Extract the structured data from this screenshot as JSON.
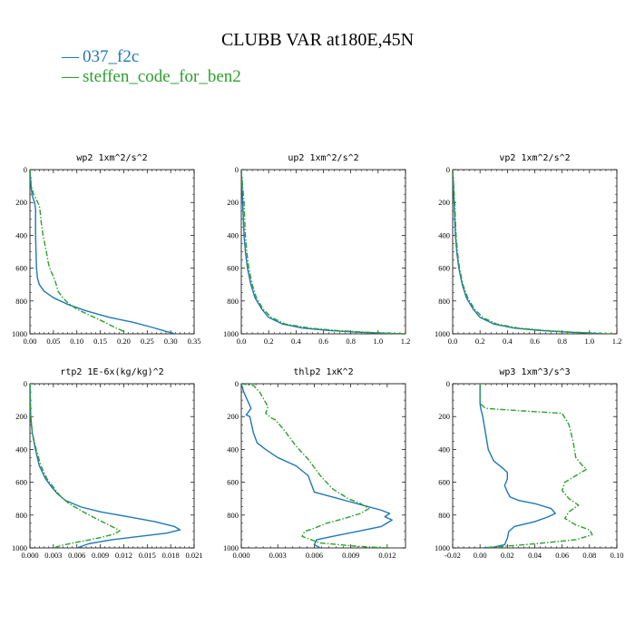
{
  "figure": {
    "title": "CLUBB VAR at180E,45N"
  },
  "legend": [
    {
      "marker": "—",
      "name": "037_f2c",
      "color": "#1f77b4",
      "dash": "solid"
    },
    {
      "marker": "—",
      "name": "steffen_code_for_ben2",
      "color": "#2ca02c",
      "dash": "dashdot"
    }
  ],
  "chart_data": [
    {
      "type": "line",
      "title": "wp2   1xm^2/s^2",
      "xlim": [
        0,
        0.35
      ],
      "xticks": [
        "0.00",
        "0.05",
        "0.10",
        "0.15",
        "0.20",
        "0.25",
        "0.30",
        "0.35"
      ],
      "ylim": [
        0,
        1000
      ],
      "yticks": [
        "0",
        "200",
        "400",
        "600",
        "800",
        "1000"
      ],
      "y_reversed": true,
      "series": [
        {
          "name": "037_f2c",
          "color": "#1f77b4",
          "dash": "solid",
          "x": [
            0.0,
            0.002,
            0.005,
            0.01,
            0.012,
            0.012,
            0.012,
            0.013,
            0.014,
            0.016,
            0.02,
            0.03,
            0.05,
            0.08,
            0.12,
            0.17,
            0.22,
            0.26,
            0.29,
            0.31
          ],
          "y": [
            0,
            100,
            160,
            200,
            240,
            300,
            400,
            500,
            600,
            660,
            700,
            740,
            780,
            820,
            860,
            900,
            930,
            960,
            985,
            1000
          ]
        },
        {
          "name": "steffen_code_for_ben2",
          "color": "#2ca02c",
          "dash": "dashdot",
          "x": [
            0.0,
            0.003,
            0.008,
            0.015,
            0.02,
            0.022,
            0.024,
            0.028,
            0.035,
            0.04,
            0.045,
            0.05,
            0.055,
            0.06,
            0.07,
            0.08,
            0.1,
            0.13,
            0.16,
            0.18,
            0.2,
            0.2
          ],
          "y": [
            0,
            100,
            150,
            190,
            220,
            260,
            320,
            400,
            500,
            580,
            620,
            650,
            690,
            740,
            780,
            810,
            850,
            890,
            930,
            960,
            985,
            1000
          ]
        }
      ]
    },
    {
      "type": "line",
      "title": "up2   1xm^2/s^2",
      "xlim": [
        0,
        1.2
      ],
      "xticks": [
        "0.0",
        "0.2",
        "0.4",
        "0.6",
        "0.8",
        "1.0",
        "1.2"
      ],
      "ylim": [
        0,
        1000
      ],
      "yticks": [
        "0",
        "200",
        "400",
        "600",
        "800",
        "1000"
      ],
      "y_reversed": true,
      "series": [
        {
          "name": "037_f2c",
          "color": "#1f77b4",
          "dash": "solid",
          "x": [
            0.0,
            0.005,
            0.01,
            0.015,
            0.02,
            0.03,
            0.045,
            0.07,
            0.1,
            0.15,
            0.2,
            0.3,
            0.45,
            0.65,
            0.85,
            1.0,
            1.15
          ],
          "y": [
            0,
            100,
            200,
            300,
            400,
            500,
            600,
            700,
            780,
            850,
            900,
            940,
            965,
            980,
            990,
            995,
            1000
          ]
        },
        {
          "name": "steffen_code_for_ben2",
          "color": "#2ca02c",
          "dash": "dashdot",
          "x": [
            0.0,
            0.01,
            0.02,
            0.025,
            0.03,
            0.04,
            0.055,
            0.08,
            0.11,
            0.16,
            0.22,
            0.32,
            0.5,
            0.7,
            0.9,
            1.05,
            1.2
          ],
          "y": [
            0,
            100,
            200,
            300,
            400,
            500,
            600,
            700,
            780,
            850,
            900,
            940,
            965,
            980,
            990,
            995,
            1000
          ]
        }
      ]
    },
    {
      "type": "line",
      "title": "vp2   1xm^2/s^2",
      "xlim": [
        0,
        1.2
      ],
      "xticks": [
        "0.0",
        "0.2",
        "0.4",
        "0.6",
        "0.8",
        "1.0",
        "1.2"
      ],
      "ylim": [
        0,
        1000
      ],
      "yticks": [
        "0",
        "200",
        "400",
        "600",
        "800",
        "1000"
      ],
      "y_reversed": true,
      "series": [
        {
          "name": "037_f2c",
          "color": "#1f77b4",
          "dash": "solid",
          "x": [
            0.0,
            0.005,
            0.01,
            0.015,
            0.02,
            0.03,
            0.045,
            0.07,
            0.1,
            0.15,
            0.2,
            0.3,
            0.45,
            0.65,
            0.85,
            1.0,
            1.1
          ],
          "y": [
            0,
            100,
            200,
            300,
            400,
            500,
            600,
            700,
            780,
            850,
            900,
            940,
            965,
            980,
            990,
            995,
            1000
          ]
        },
        {
          "name": "steffen_code_for_ben2",
          "color": "#2ca02c",
          "dash": "dashdot",
          "x": [
            0.0,
            0.008,
            0.015,
            0.02,
            0.025,
            0.035,
            0.05,
            0.075,
            0.11,
            0.16,
            0.22,
            0.32,
            0.48,
            0.68,
            0.88,
            1.02,
            1.15
          ],
          "y": [
            0,
            100,
            200,
            300,
            400,
            500,
            600,
            700,
            780,
            850,
            900,
            940,
            965,
            980,
            990,
            995,
            1000
          ]
        }
      ]
    },
    {
      "type": "line",
      "title": "rtp2   1E-6x(kg/kg)^2",
      "xlim": [
        0,
        0.021
      ],
      "xticks": [
        "0.000",
        "0.003",
        "0.006",
        "0.009",
        "0.012",
        "0.015",
        "0.018",
        "0.021"
      ],
      "ylim": [
        0,
        1000
      ],
      "yticks": [
        "0",
        "200",
        "400",
        "600",
        "800",
        "1000"
      ],
      "y_reversed": true,
      "series": [
        {
          "name": "037_f2c",
          "color": "#1f77b4",
          "dash": "solid",
          "x": [
            0.0,
            0.0001,
            0.0003,
            0.0007,
            0.0012,
            0.002,
            0.0028,
            0.0035,
            0.0045,
            0.0065,
            0.009,
            0.0125,
            0.016,
            0.0185,
            0.0192,
            0.0175,
            0.014,
            0.0105,
            0.0075,
            0.006
          ],
          "y": [
            0,
            200,
            300,
            400,
            500,
            580,
            630,
            670,
            710,
            750,
            780,
            810,
            840,
            870,
            890,
            910,
            930,
            950,
            975,
            1000
          ]
        },
        {
          "name": "steffen_code_for_ben2",
          "color": "#2ca02c",
          "dash": "dashdot",
          "x": [
            0.0,
            0.0001,
            0.0003,
            0.0008,
            0.0014,
            0.0022,
            0.003,
            0.0038,
            0.005,
            0.0068,
            0.0088,
            0.0105,
            0.0115,
            0.0108,
            0.0092,
            0.0072,
            0.0055,
            0.004,
            0.003
          ],
          "y": [
            0,
            200,
            300,
            400,
            500,
            580,
            630,
            680,
            730,
            780,
            830,
            870,
            895,
            915,
            935,
            955,
            970,
            985,
            1000
          ]
        }
      ]
    },
    {
      "type": "line",
      "title": "thlp2   1xK^2",
      "xlim": [
        0,
        0.0135
      ],
      "xticks": [
        "0.000",
        "0.003",
        "0.006",
        "0.009",
        "0.012"
      ],
      "ylim": [
        0,
        1000
      ],
      "yticks": [
        "0",
        "200",
        "400",
        "600",
        "800",
        "1000"
      ],
      "y_reversed": true,
      "series": [
        {
          "name": "037_f2c",
          "color": "#1f77b4",
          "dash": "solid",
          "x": [
            0.0,
            0.0002,
            0.0005,
            0.0008,
            0.0006,
            0.0004,
            0.0007,
            0.001,
            0.0013,
            0.002,
            0.003,
            0.0045,
            0.0055,
            0.0057,
            0.006,
            0.008,
            0.01,
            0.0115,
            0.0122,
            0.0118,
            0.0124,
            0.0115,
            0.0095,
            0.0075,
            0.0062,
            0.006,
            0.0065
          ],
          "y": [
            0,
            50,
            100,
            150,
            170,
            190,
            200,
            300,
            360,
            400,
            450,
            500,
            560,
            600,
            660,
            700,
            740,
            770,
            790,
            810,
            830,
            870,
            900,
            930,
            950,
            980,
            1000
          ]
        },
        {
          "name": "steffen_code_for_ben2",
          "color": "#2ca02c",
          "dash": "dashdot",
          "x": [
            0.0,
            0.001,
            0.0015,
            0.0022,
            0.002,
            0.0025,
            0.0028,
            0.0035,
            0.0045,
            0.0055,
            0.0065,
            0.0075,
            0.0088,
            0.0098,
            0.0105,
            0.0098,
            0.0085,
            0.007,
            0.006,
            0.0052,
            0.005,
            0.0065,
            0.0095,
            0.012
          ],
          "y": [
            0,
            10,
            50,
            140,
            180,
            210,
            220,
            280,
            380,
            460,
            560,
            640,
            700,
            730,
            760,
            790,
            820,
            850,
            880,
            900,
            930,
            970,
            990,
            1000
          ]
        }
      ]
    },
    {
      "type": "line",
      "title": "wp3   1xm^3/s^3",
      "xlim": [
        -0.02,
        0.1
      ],
      "xticks": [
        "-0.02",
        "0.00",
        "0.02",
        "0.04",
        "0.06",
        "0.08",
        "0.10"
      ],
      "ylim": [
        0,
        1000
      ],
      "yticks": [
        "0",
        "200",
        "400",
        "600",
        "800",
        "1000"
      ],
      "y_reversed": true,
      "series": [
        {
          "name": "037_f2c",
          "color": "#1f77b4",
          "dash": "solid",
          "x": [
            0.0,
            0.0,
            0.0005,
            0.002,
            0.004,
            0.006,
            0.01,
            0.016,
            0.02,
            0.02,
            0.018,
            0.02,
            0.022,
            0.028,
            0.04,
            0.052,
            0.055,
            0.05,
            0.04,
            0.025,
            0.021,
            0.02,
            0.018,
            0.01,
            0.002
          ],
          "y": [
            0,
            120,
            150,
            200,
            300,
            400,
            470,
            510,
            540,
            580,
            620,
            660,
            690,
            710,
            730,
            760,
            790,
            810,
            840,
            870,
            900,
            940,
            980,
            995,
            1000
          ]
        },
        {
          "name": "steffen_code_for_ben2",
          "color": "#2ca02c",
          "dash": "dashdot",
          "x": [
            0.0,
            0.0,
            0.004,
            0.03,
            0.06,
            0.065,
            0.068,
            0.07,
            0.075,
            0.078,
            0.07,
            0.062,
            0.06,
            0.065,
            0.072,
            0.065,
            0.062,
            0.07,
            0.08,
            0.082,
            0.07,
            0.04,
            0.015,
            0.002
          ],
          "y": [
            0,
            120,
            150,
            165,
            180,
            250,
            350,
            450,
            500,
            520,
            560,
            600,
            650,
            700,
            740,
            780,
            820,
            860,
            890,
            920,
            950,
            975,
            992,
            1000
          ]
        }
      ]
    }
  ]
}
